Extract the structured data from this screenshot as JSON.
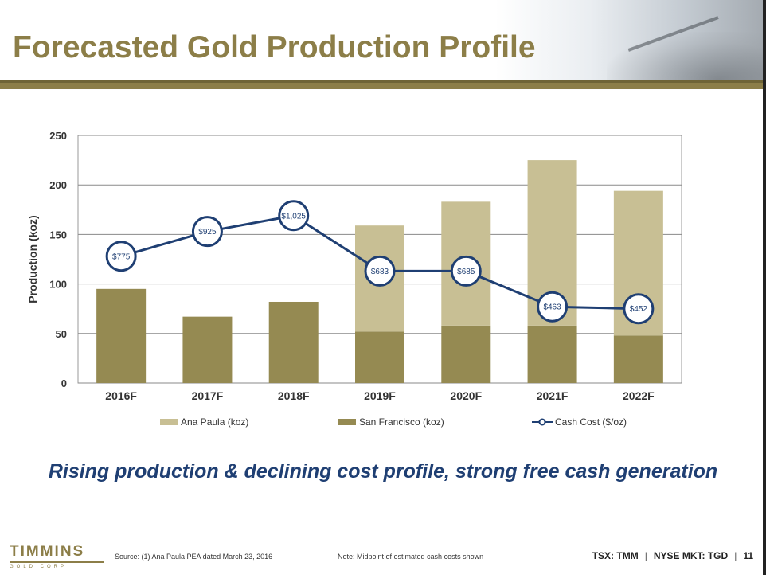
{
  "slide": {
    "title": "Forecasted Gold Production Profile",
    "tagline": "Rising production & declining cost profile, strong free cash generation",
    "source": "Source: (1) Ana Paula PEA dated March 23, 2016",
    "note": "Note: Midpoint of estimated cash costs shown",
    "ticker_tsx": "TSX: TMM",
    "ticker_nyse": "NYSE MKT: TGD",
    "page_number": "11",
    "logo_text": "TIMMINS",
    "logo_sub": "GOLD CORP"
  },
  "colors": {
    "ana_paula": "#c8bf94",
    "san_francisco": "#958a52",
    "cash_cost": "#1f3f73",
    "title": "#8c7e48",
    "tagline": "#1f3f73"
  },
  "chart_data": {
    "type": "bar",
    "stacked": true,
    "categories": [
      "2016F",
      "2017F",
      "2018F",
      "2019F",
      "2020F",
      "2021F",
      "2022F"
    ],
    "ylabel": "Production (koz)",
    "ylim": [
      0,
      250
    ],
    "yticks": [
      0,
      50,
      100,
      150,
      200,
      250
    ],
    "grid": true,
    "legend_position": "bottom",
    "series": [
      {
        "name": "San Francisco (koz)",
        "values": [
          95,
          67,
          82,
          52,
          58,
          58,
          48
        ]
      },
      {
        "name": "Ana Paula (koz)",
        "values": [
          0,
          0,
          0,
          107,
          125,
          167,
          146
        ]
      }
    ],
    "line_series": {
      "name": "Cash Cost ($/oz)",
      "values": [
        775,
        925,
        1025,
        683,
        685,
        463,
        452
      ],
      "labels": [
        "$775",
        "$925",
        "$1,025",
        "$683",
        "$685",
        "$463",
        "$452"
      ],
      "plotted_at_koz": [
        128,
        153,
        169,
        113,
        113,
        77,
        75
      ]
    }
  }
}
